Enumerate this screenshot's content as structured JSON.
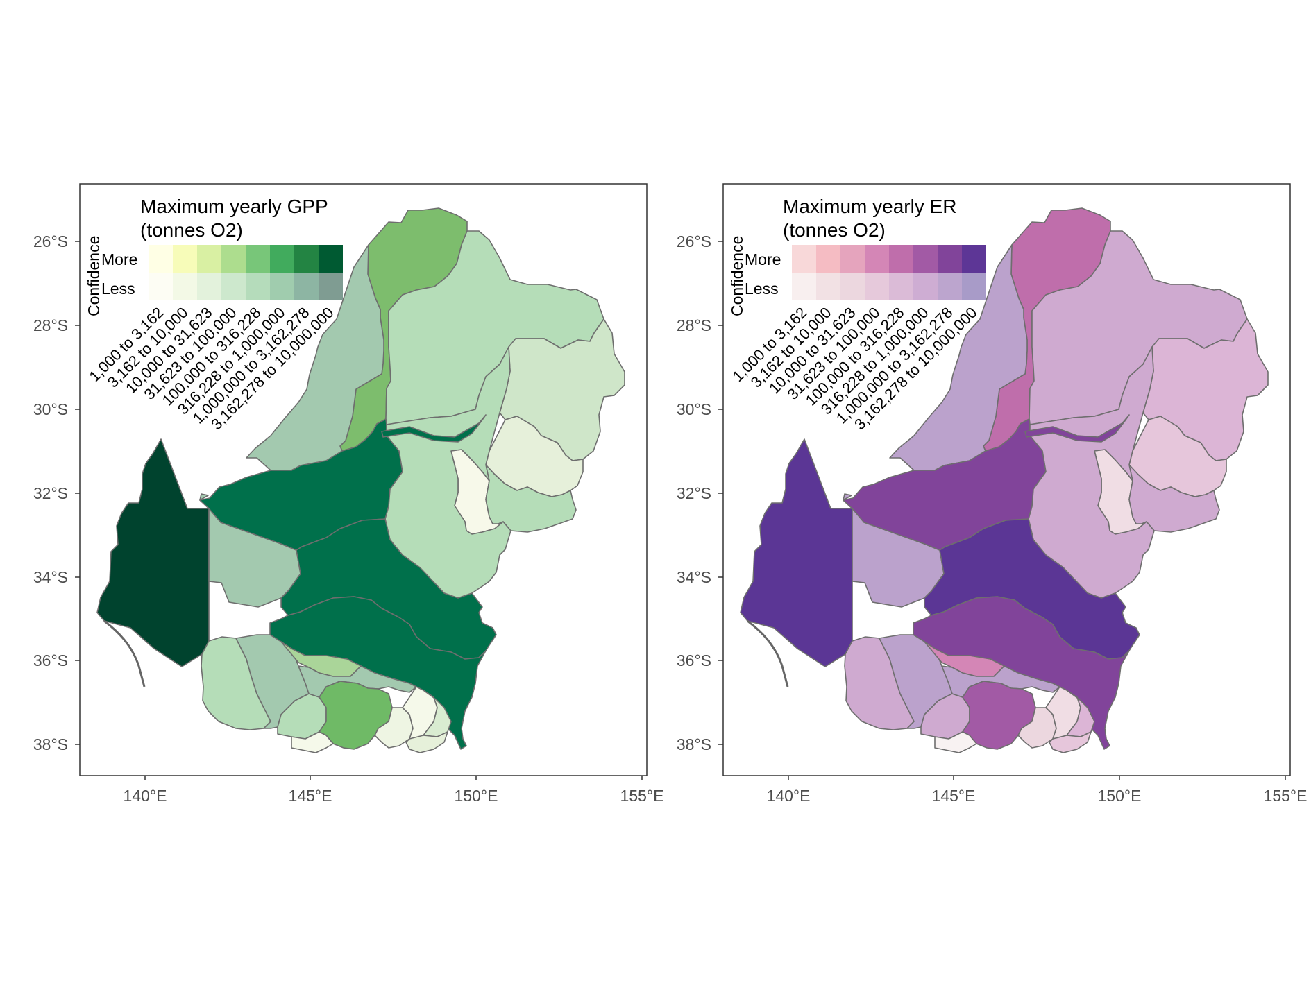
{
  "panels": [
    {
      "id": "gpp",
      "legend": {
        "title_line1": "Maximum yearly GPP",
        "title_line2": "(tonnes O2)",
        "confidence_label": "Confidence",
        "more_label": "More",
        "less_label": "Less",
        "colors_more": [
          "#ffffe5",
          "#f7fcb9",
          "#d9f0a3",
          "#addd8e",
          "#78c679",
          "#41ab5d",
          "#238443",
          "#005a32"
        ],
        "colors_less": [
          "#fdfdf4",
          "#f3f9e6",
          "#e3f2dc",
          "#cde8cd",
          "#b5dcbb",
          "#a0ccae",
          "#8db5a3",
          "#7f9c92"
        ]
      },
      "region_colors": {
        "west": "#00432e",
        "riverina": "#a3c9af",
        "north_strip": "#7dbd6d",
        "darling_north": "#a3c9af",
        "central_north": "#b5ddb8",
        "east_upper": "#cfe6c9",
        "east_mid": "#e6f0da",
        "east_small": "#f7f9ea",
        "east_lower": "#b5ddb8",
        "lachlan": "#00704b",
        "murrumbidgee": "#00704b",
        "murray_east": "#00704b",
        "central_s": "#b5ddb8",
        "sw_a": "#b5ddb8",
        "sw_b": "#a3c9af",
        "sw_c": "#b5ddb8",
        "sliver": "#aad599",
        "south_mid": "#a3c9af",
        "vic_blob": "#6fba66",
        "vic_white": "#f5f9ea",
        "vic_e1": "#eef5e3",
        "vic_e2": "#f5f9ea",
        "vic_e3": "#d9ecd1",
        "vic_e4": "#e6f0da",
        "channel": "#00704b"
      }
    },
    {
      "id": "er",
      "legend": {
        "title_line1": "Maximum yearly ER",
        "title_line2": "(tonnes O2)",
        "confidence_label": "Confidence",
        "more_label": "More",
        "less_label": "Less",
        "colors_more": [
          "#f8d8d9",
          "#f5bcc3",
          "#e5a4bd",
          "#d486b6",
          "#bf6eab",
          "#a25aa5",
          "#81449a",
          "#5d3696"
        ],
        "colors_less": [
          "#f8efef",
          "#f2e1e4",
          "#ecd7df",
          "#e6c9db",
          "#dbbbd7",
          "#ceadd3",
          "#bca5ce",
          "#a89bc8"
        ]
      },
      "region_colors": {
        "west": "#5b3695",
        "riverina": "#bba2cc",
        "north_strip": "#bf6eab",
        "darling_north": "#bba2cc",
        "central_north": "#cfaad0",
        "east_upper": "#dcb5d6",
        "east_mid": "#e6c6db",
        "east_small": "#f0dde4",
        "east_lower": "#cfaad0",
        "lachlan": "#81449a",
        "murrumbidgee": "#5b3695",
        "murray_east": "#81449a",
        "central_s": "#cfaad0",
        "sw_a": "#cfaad0",
        "sw_b": "#bba2cc",
        "sw_c": "#cfaad0",
        "sliver": "#d486b6",
        "south_mid": "#bba2cc",
        "vic_blob": "#a25aa5",
        "vic_white": "#f8f2f2",
        "vic_e1": "#ecd7df",
        "vic_e2": "#f0dde4",
        "vic_e3": "#dcb5d6",
        "vic_e4": "#e6c6db",
        "channel": "#81449a"
      }
    }
  ],
  "shared": {
    "bin_labels": [
      "1,000 to 3,162",
      "3,162 to 10,000",
      "10,000 to 31,623",
      "31,623 to 100,000",
      "100,000 to 316,228",
      "316,228 to 1,000,000",
      "1,000,000 to 3,162,278",
      "3,162,278 to 10,000,000"
    ],
    "y_ticks": [
      "26°S",
      "28°S",
      "30°S",
      "32°S",
      "34°S",
      "36°S",
      "38°S"
    ],
    "x_ticks": [
      "140°E",
      "145°E",
      "150°E",
      "155°E"
    ]
  }
}
